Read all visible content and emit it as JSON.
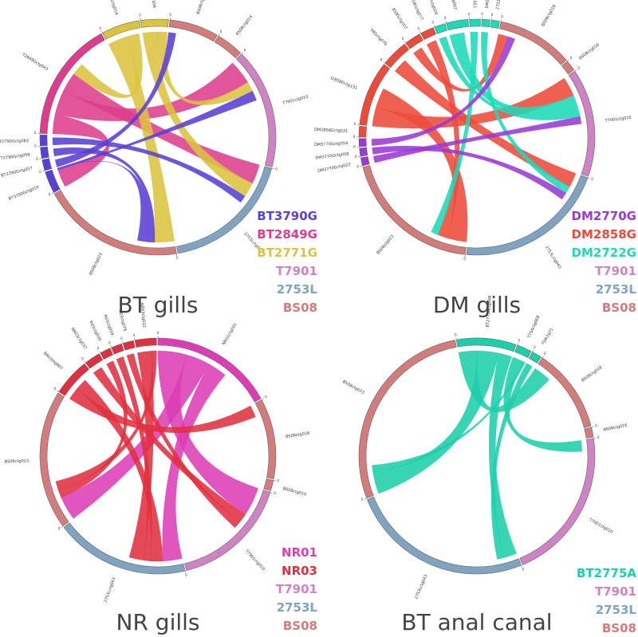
{
  "colors": {
    "BT3790G": "#5a3fd6",
    "BT2849G": "#dd3d8c",
    "BT2771G": "#dcc33f",
    "DM2770G": "#9b38d6",
    "DM2858G": "#ee4a3a",
    "DM2722G": "#1ddab7",
    "NR01": "#dc3db5",
    "NR03": "#e03040",
    "BT2775A": "#1ccfab",
    "T7901": "#cf82c4",
    "2753L": "#7fa3c0",
    "BS08": "#d27c7c"
  },
  "chart_data": [
    {
      "type": "chord",
      "title": "BT gills",
      "legend": [
        "BT3790G",
        "BT2849G",
        "BT2771G",
        "T7901",
        "2753L",
        "BS08"
      ],
      "segments": [
        {
          "label": "BT2771Gctg014",
          "group": "BT2771G",
          "span": 14
        },
        {
          "label": "T1Gctg56",
          "group": "BT2771G",
          "span": 10
        },
        {
          "label": "BS08ctg018",
          "group": "BS08",
          "span": 18
        },
        {
          "label": "BS08ctg014",
          "group": "BS08",
          "span": 10
        },
        {
          "label": "T7901ctg010",
          "group": "T7901",
          "span": 44
        },
        {
          "label": "2753Lctg043",
          "group": "2753L",
          "span": 48
        },
        {
          "label": "BS08ctg023",
          "group": "BS08",
          "span": 52
        },
        {
          "label": "BT3790Gctg019",
          "group": "BT3790G",
          "span": 8
        },
        {
          "label": "BT3790Gctg057",
          "group": "BT3790G",
          "span": 4
        },
        {
          "label": "T3790Gctg058",
          "group": "BT3790G",
          "span": 4
        },
        {
          "label": "T2790Gctg083",
          "group": "BT3790G",
          "span": 4
        },
        {
          "label": "T2849Gctg043",
          "group": "BT2849G",
          "span": 44
        }
      ],
      "ribbons": [
        {
          "from": 11,
          "to": 7,
          "group": "BT2849G",
          "width": 8
        },
        {
          "from": 11,
          "to": 4,
          "group": "BT2849G",
          "width": 10
        },
        {
          "from": 11,
          "to": 5,
          "group": "BT2849G",
          "width": 8
        },
        {
          "from": 0,
          "to": 6,
          "group": "BT2771G",
          "width": 8
        },
        {
          "from": 1,
          "to": 5,
          "group": "BT2771G",
          "width": 6
        },
        {
          "from": 0,
          "to": 11,
          "group": "BT2771G",
          "width": 5
        },
        {
          "from": 1,
          "to": 4,
          "group": "BT2771G",
          "width": 4
        },
        {
          "from": 7,
          "to": 4,
          "group": "BT3790G",
          "width": 4
        },
        {
          "from": 8,
          "to": 2,
          "group": "BT3790G",
          "width": 3
        },
        {
          "from": 9,
          "to": 6,
          "group": "BT3790G",
          "width": 3
        },
        {
          "from": 10,
          "to": 5,
          "group": "BT3790G",
          "width": 3
        },
        {
          "from": 7,
          "to": 6,
          "group": "BT3790G",
          "width": 4
        }
      ]
    },
    {
      "type": "chord",
      "title": "DM gills",
      "legend": [
        "DM2770G",
        "DM2858G",
        "DM2722G",
        "T7901",
        "2753L",
        "BS08"
      ],
      "segments": [
        {
          "label": "DM2722Gctg007",
          "group": "DM2722G",
          "span": 8
        },
        {
          "label": "DM2722Gctg022",
          "group": "DM2722G",
          "span": 4
        },
        {
          "label": "DM2722Gctg037",
          "group": "DM2722G",
          "span": 3
        },
        {
          "label": "2722Gctg060",
          "group": "DM2722G",
          "span": 3
        },
        {
          "label": "BS08ctg018",
          "group": "BS08",
          "span": 28
        },
        {
          "label": "BS08ctg016",
          "group": "BS08",
          "span": 4
        },
        {
          "label": "T7901ctg010",
          "group": "T7901",
          "span": 40
        },
        {
          "label": "2753Lctg043",
          "group": "2753L",
          "span": 56
        },
        {
          "label": "BS08ctg023",
          "group": "BS08",
          "span": 52
        },
        {
          "label": "DM3770Gctg023",
          "group": "DM2770G",
          "span": 3
        },
        {
          "label": "DM3770Gctg058",
          "group": "DM2770G",
          "span": 3
        },
        {
          "label": "DM3770Gctg059",
          "group": "DM2770G",
          "span": 3
        },
        {
          "label": "DM2858Gctg031",
          "group": "DM2858G",
          "span": 4
        },
        {
          "label": "t2858Gctg131",
          "group": "DM2858G",
          "span": 24
        },
        {
          "label": "58Gctg076",
          "group": "DM2858G",
          "span": 10
        },
        {
          "label": "858Gctg107",
          "group": "DM2858G",
          "span": 6
        },
        {
          "label": "t2858Gctg077",
          "group": "DM2858G",
          "span": 5
        },
        {
          "label": "DM2722Gctg029",
          "group": "DM2722G",
          "span": 4
        }
      ],
      "ribbons": [
        {
          "from": 13,
          "to": 6,
          "group": "DM2858G",
          "width": 8
        },
        {
          "from": 13,
          "to": 8,
          "group": "DM2858G",
          "width": 8
        },
        {
          "from": 14,
          "to": 7,
          "group": "DM2858G",
          "width": 6
        },
        {
          "from": 15,
          "to": 4,
          "group": "DM2858G",
          "width": 4
        },
        {
          "from": 16,
          "to": 8,
          "group": "DM2858G",
          "width": 4
        },
        {
          "from": 0,
          "to": 6,
          "group": "DM2722G",
          "width": 6
        },
        {
          "from": 1,
          "to": 8,
          "group": "DM2722G",
          "width": 3
        },
        {
          "from": 2,
          "to": 7,
          "group": "DM2722G",
          "width": 3
        },
        {
          "from": 17,
          "to": 6,
          "group": "DM2722G",
          "width": 3
        },
        {
          "from": 9,
          "to": 6,
          "group": "DM2770G",
          "width": 3
        },
        {
          "from": 10,
          "to": 7,
          "group": "DM2770G",
          "width": 3
        },
        {
          "from": 11,
          "to": 4,
          "group": "DM2770G",
          "width": 3
        }
      ]
    },
    {
      "type": "chord",
      "title": "NR gills",
      "legend": [
        "NR01",
        "NR03",
        "T7901",
        "2753L",
        "BS08"
      ],
      "segments": [
        {
          "label": "NR01ctg001",
          "group": "NR01",
          "span": 46
        },
        {
          "label": "BS08ctg018",
          "group": "BS08",
          "span": 30
        },
        {
          "label": "BS08ctg016",
          "group": "BS08",
          "span": 4
        },
        {
          "label": "T7901ctg010",
          "group": "T7901",
          "span": 44
        },
        {
          "label": "2753Lctg043",
          "group": "2753L",
          "span": 50
        },
        {
          "label": "BS08ctg023",
          "group": "BS08",
          "span": 52
        },
        {
          "label": "NR03ctg007",
          "group": "NR03",
          "span": 14
        },
        {
          "label": "NR03ctg037",
          "group": "NR03",
          "span": 6
        },
        {
          "label": "R03ctg030",
          "group": "NR03",
          "span": 4
        },
        {
          "label": "R03ctg059",
          "group": "NR03",
          "span": 4
        },
        {
          "label": "R03ctg076",
          "group": "NR03",
          "span": 4
        },
        {
          "label": "NR03ctg022",
          "group": "NR03",
          "span": 8
        }
      ],
      "ribbons": [
        {
          "from": 0,
          "to": 3,
          "group": "NR01",
          "width": 12
        },
        {
          "from": 0,
          "to": 5,
          "group": "NR01",
          "width": 10
        },
        {
          "from": 0,
          "to": 4,
          "group": "NR01",
          "width": 8
        },
        {
          "from": 6,
          "to": 1,
          "group": "NR03",
          "width": 5
        },
        {
          "from": 6,
          "to": 4,
          "group": "NR03",
          "width": 5
        },
        {
          "from": 7,
          "to": 3,
          "group": "NR03",
          "width": 4
        },
        {
          "from": 8,
          "to": 5,
          "group": "NR03",
          "width": 3
        },
        {
          "from": 9,
          "to": 4,
          "group": "NR03",
          "width": 3
        },
        {
          "from": 10,
          "to": 3,
          "group": "NR03",
          "width": 3
        },
        {
          "from": 11,
          "to": 4,
          "group": "NR03",
          "width": 6
        },
        {
          "from": 11,
          "to": 5,
          "group": "NR03",
          "width": 4
        }
      ]
    },
    {
      "type": "chord",
      "title": "BT anal canal",
      "legend": [
        "BT2775A",
        "T7901",
        "2753L",
        "BS08"
      ],
      "segments": [
        {
          "label": "BT2775Actg048",
          "group": "BT2775A",
          "span": 24
        },
        {
          "label": "T75Actg068",
          "group": "BT2775A",
          "span": 6
        },
        {
          "label": "75Actg71",
          "group": "BT2775A",
          "span": 4
        },
        {
          "label": "BS08ctg018",
          "group": "BS08",
          "span": 34
        },
        {
          "label": "BS08ctg016",
          "group": "BS08",
          "span": 4
        },
        {
          "label": "T7901ctg010",
          "group": "T7901",
          "span": 62
        },
        {
          "label": "2753Lctg043",
          "group": "2753L",
          "span": 74
        },
        {
          "label": "BS08ctg023",
          "group": "BS08",
          "span": 82
        }
      ],
      "ribbons": [
        {
          "from": 0,
          "to": 3,
          "group": "BT2775A",
          "width": 8
        },
        {
          "from": 0,
          "to": 7,
          "group": "BT2775A",
          "width": 10
        },
        {
          "from": 0,
          "to": 6,
          "group": "BT2775A",
          "width": 6
        },
        {
          "from": 1,
          "to": 5,
          "group": "BT2775A",
          "width": 5
        },
        {
          "from": 2,
          "to": 6,
          "group": "BT2775A",
          "width": 3
        },
        {
          "from": 1,
          "to": 7,
          "group": "BT2775A",
          "width": 3
        }
      ]
    }
  ]
}
